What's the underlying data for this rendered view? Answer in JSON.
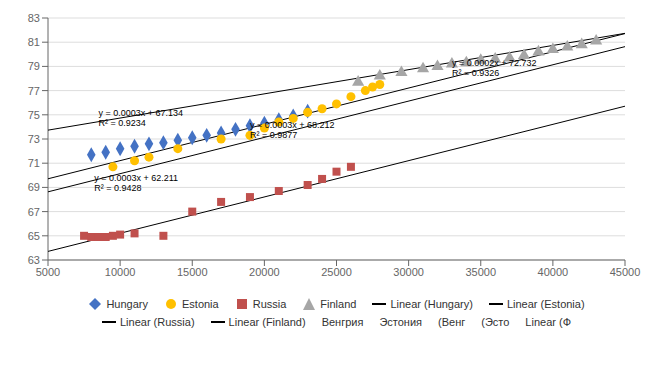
{
  "chart_data": {
    "type": "scatter",
    "series": [
      {
        "name": "Hungary",
        "type": "scatter",
        "marker": "diamond",
        "color": "#4472C4",
        "x": [
          8000,
          9000,
          10000,
          11000,
          12000,
          13000,
          14000,
          15000,
          16000,
          17000,
          18000,
          19000,
          20000,
          21000,
          22000,
          23000
        ],
        "values": [
          71.7,
          71.9,
          72.2,
          72.4,
          72.6,
          72.7,
          72.9,
          73.1,
          73.3,
          73.5,
          73.8,
          74.1,
          74.3,
          74.6,
          74.9,
          75.3
        ]
      },
      {
        "name": "Estonia",
        "type": "scatter",
        "marker": "circle",
        "color": "#FFC000",
        "x": [
          9500,
          11000,
          12000,
          14000,
          17000,
          19000,
          20000,
          21000,
          22000,
          23000,
          24000,
          25000,
          26000,
          27000,
          27500,
          28000
        ],
        "values": [
          70.7,
          71.2,
          71.5,
          72.2,
          73.0,
          73.3,
          73.9,
          74.4,
          74.7,
          75.2,
          75.5,
          75.9,
          76.5,
          77.0,
          77.3,
          77.5
        ]
      },
      {
        "name": "Russia",
        "type": "scatter",
        "marker": "square",
        "color": "#C0504D",
        "x": [
          7500,
          8000,
          8500,
          9000,
          9500,
          10000,
          11000,
          13000,
          15000,
          17000,
          19000,
          21000,
          23000,
          24000,
          25000,
          26000
        ],
        "values": [
          65.0,
          64.9,
          64.9,
          64.9,
          65.0,
          65.1,
          65.2,
          65.0,
          67.0,
          67.8,
          68.2,
          68.7,
          69.2,
          69.7,
          70.3,
          70.7
        ]
      },
      {
        "name": "Finland",
        "type": "scatter",
        "marker": "triangle",
        "color": "#A6A6A6",
        "x": [
          26500,
          28000,
          29500,
          31000,
          32000,
          33000,
          34000,
          35000,
          36000,
          37000,
          38000,
          39000,
          40000,
          41000,
          42000,
          43000
        ],
        "values": [
          77.7,
          78.2,
          78.5,
          78.8,
          79.0,
          79.2,
          79.3,
          79.5,
          79.6,
          79.7,
          79.9,
          80.2,
          80.4,
          80.6,
          80.8,
          81.1
        ]
      },
      {
        "name": "Linear (Hungary)",
        "type": "line",
        "color": "#000000",
        "x": [
          5000,
          45000
        ],
        "values": [
          68.634,
          80.634
        ]
      },
      {
        "name": "Linear (Estonia)",
        "type": "line",
        "color": "#000000",
        "x": [
          5000,
          45000
        ],
        "values": [
          69.712,
          81.712
        ]
      },
      {
        "name": "Linear (Russia)",
        "type": "line",
        "color": "#000000",
        "x": [
          5000,
          45000
        ],
        "values": [
          63.711,
          75.711
        ]
      },
      {
        "name": "Linear (Finland)",
        "type": "line",
        "color": "#000000",
        "x": [
          5000,
          45000
        ],
        "values": [
          73.732,
          81.732
        ]
      }
    ],
    "annotations": [
      {
        "text": "y = 0.0003x + 67.134",
        "x": 8500,
        "y": 74.9
      },
      {
        "text": "R² = 0.9234",
        "x": 8500,
        "y": 74.1
      },
      {
        "text": "y = 0.0003x + 68.212",
        "x": 19000,
        "y": 73.9
      },
      {
        "text": "R² = 0.9877",
        "x": 19000,
        "y": 73.1
      },
      {
        "text": "y = 0.0003x + 62.211",
        "x": 8200,
        "y": 69.5
      },
      {
        "text": "R² = 0.9428",
        "x": 8200,
        "y": 68.7
      },
      {
        "text": "y = 0.0002x + 72.732",
        "x": 33000,
        "y": 79.0
      },
      {
        "text": "R² = 0.9326",
        "x": 33000,
        "y": 78.2
      },
      {
        "text": "Венгрия"
      },
      {
        "text": "Эстония"
      },
      {
        "text": "(Венг"
      },
      {
        "text": "(Эсто"
      },
      {
        "text": "Linear (Ф"
      }
    ],
    "xlim": [
      5000,
      45000
    ],
    "ylim": [
      63,
      83
    ],
    "xticks": [
      5000,
      10000,
      15000,
      20000,
      25000,
      30000,
      35000,
      40000,
      45000
    ],
    "yticks": [
      63,
      65,
      67,
      69,
      71,
      73,
      75,
      77,
      79,
      81,
      83
    ],
    "grid": "y"
  }
}
